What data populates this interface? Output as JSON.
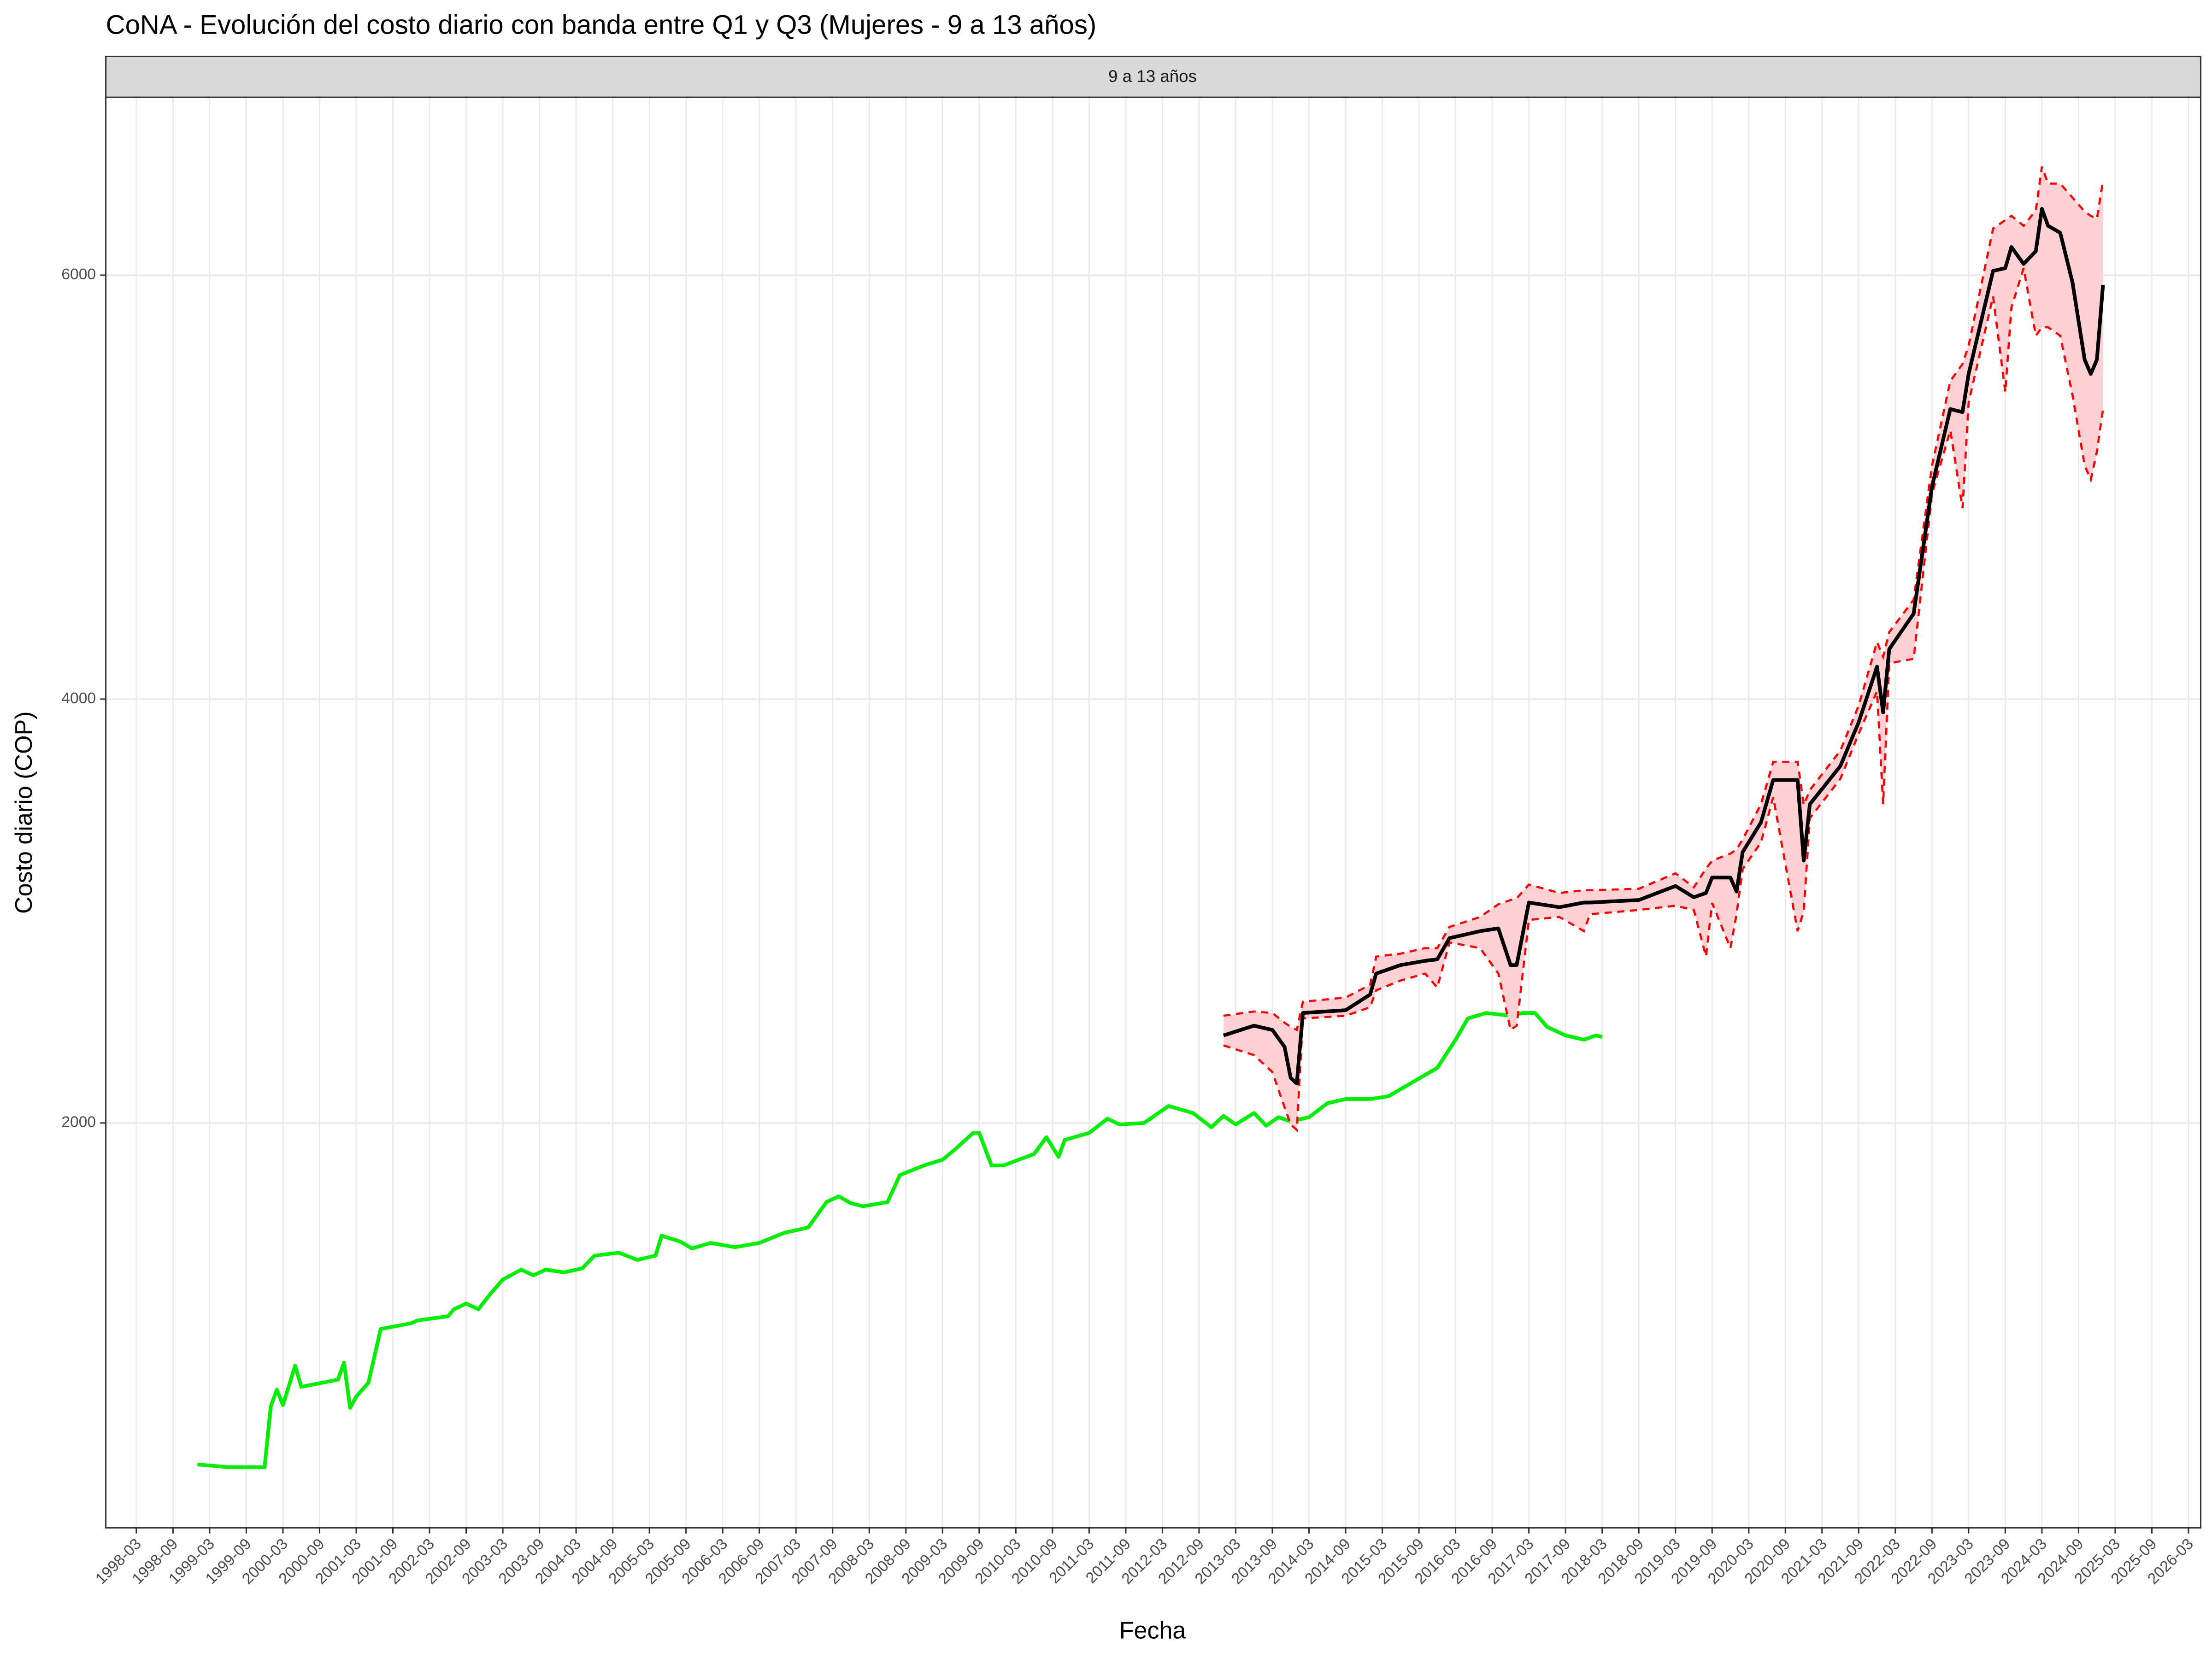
{
  "chart_data": {
    "type": "line",
    "title": "CoNA - Evolución del costo diario con banda entre Q1 y Q3 (Mujeres - 9 a 13 años)",
    "panel_label": "9 a 13 años",
    "xlabel": "Fecha",
    "ylabel": "Costo diario (COP)",
    "xlim": [
      "1997-10",
      "2026-05"
    ],
    "xticks": [
      "1998-03",
      "1998-09",
      "1999-03",
      "1999-09",
      "2000-03",
      "2000-09",
      "2001-03",
      "2001-09",
      "2002-03",
      "2002-09",
      "2003-03",
      "2003-09",
      "2004-03",
      "2004-09",
      "2005-03",
      "2005-09",
      "2006-03",
      "2006-09",
      "2007-03",
      "2007-09",
      "2008-03",
      "2008-09",
      "2009-03",
      "2009-09",
      "2010-03",
      "2010-09",
      "2011-03",
      "2011-09",
      "2012-03",
      "2012-09",
      "2013-03",
      "2013-09",
      "2014-03",
      "2014-09",
      "2015-03",
      "2015-09",
      "2016-03",
      "2016-09",
      "2017-03",
      "2017-09",
      "2018-03",
      "2018-09",
      "2019-03",
      "2019-09",
      "2020-03",
      "2020-09",
      "2021-03",
      "2021-09",
      "2022-03",
      "2022-09",
      "2023-03",
      "2023-09",
      "2024-03",
      "2024-09",
      "2025-03",
      "2025-09",
      "2026-03"
    ],
    "ylim": [
      90,
      6839
    ],
    "yticks": [
      2000,
      4000,
      6000
    ],
    "grid": true,
    "band_fill": "#ffd1d4",
    "band_line_color": "#ff0000",
    "series": [
      {
        "color": "#00ee00",
        "x": [
          "1999-01",
          "1999-06",
          "1999-12",
          "2000-01",
          "2000-02",
          "2000-03",
          "2000-05",
          "2000-06",
          "2000-12",
          "2001-01",
          "2001-02",
          "2001-03",
          "2001-05",
          "2001-07",
          "2001-12",
          "2002-01",
          "2002-06",
          "2002-07",
          "2002-09",
          "2002-11",
          "2003-01",
          "2003-03",
          "2003-06",
          "2003-08",
          "2003-10",
          "2004-01",
          "2004-04",
          "2004-06",
          "2004-10",
          "2005-01",
          "2005-04",
          "2005-05",
          "2005-08",
          "2005-10",
          "2006-01",
          "2006-05",
          "2006-09",
          "2007-01",
          "2007-05",
          "2007-08",
          "2007-10",
          "2007-12",
          "2008-02",
          "2008-06",
          "2008-08",
          "2008-12",
          "2009-03",
          "2009-05",
          "2009-08",
          "2009-09",
          "2009-11",
          "2010-01",
          "2010-06",
          "2010-08",
          "2010-10",
          "2010-11",
          "2011-03",
          "2011-06",
          "2011-08",
          "2011-12",
          "2012-02",
          "2012-04",
          "2012-08",
          "2012-11",
          "2013-01",
          "2013-03",
          "2013-06",
          "2013-08",
          "2013-10",
          "2013-12",
          "2014-03",
          "2014-06",
          "2014-09",
          "2015-01",
          "2015-04",
          "2015-08",
          "2015-12",
          "2016-03",
          "2016-05",
          "2016-08",
          "2016-12",
          "2017-02",
          "2017-04",
          "2017-06",
          "2017-09",
          "2017-12",
          "2018-02",
          "2018-03"
        ],
        "values": [
          389,
          376,
          376,
          662,
          742,
          669,
          855,
          755,
          789,
          869,
          656,
          709,
          775,
          1028,
          1055,
          1068,
          1088,
          1121,
          1148,
          1121,
          1195,
          1261,
          1308,
          1281,
          1308,
          1295,
          1314,
          1374,
          1388,
          1354,
          1374,
          1468,
          1441,
          1408,
          1434,
          1414,
          1434,
          1481,
          1507,
          1627,
          1654,
          1621,
          1607,
          1627,
          1754,
          1800,
          1827,
          1874,
          1953,
          1953,
          1800,
          1800,
          1854,
          1933,
          1840,
          1920,
          1953,
          2020,
          1993,
          2000,
          2040,
          2080,
          2047,
          1980,
          2033,
          1993,
          2047,
          1987,
          2027,
          2007,
          2027,
          2093,
          2113,
          2113,
          2126,
          2193,
          2260,
          2393,
          2493,
          2519,
          2506,
          2519,
          2519,
          2453,
          2413,
          2393,
          2413,
          2406
        ]
      },
      {
        "color": "#000000",
        "x": [
          "2013-01",
          "2013-06",
          "2013-09",
          "2013-11",
          "2013-12",
          "2014-01",
          "2014-02",
          "2014-09",
          "2015-01",
          "2015-02",
          "2015-06",
          "2015-10",
          "2015-12",
          "2016-02",
          "2016-07",
          "2016-10",
          "2016-12",
          "2017-01",
          "2017-03",
          "2017-08",
          "2017-12",
          "2018-01",
          "2018-09",
          "2019-03",
          "2019-06",
          "2019-08",
          "2019-09",
          "2019-12",
          "2020-01",
          "2020-02",
          "2020-05",
          "2020-07",
          "2020-11",
          "2020-12",
          "2021-01",
          "2021-06",
          "2021-09",
          "2021-12",
          "2022-01",
          "2022-02",
          "2022-06",
          "2022-09",
          "2022-12",
          "2023-02",
          "2023-03",
          "2023-07",
          "2023-09",
          "2023-10",
          "2023-12",
          "2024-02",
          "2024-03",
          "2024-04",
          "2024-06",
          "2024-08",
          "2024-10",
          "2024-11",
          "2024-12",
          "2025-01"
        ],
        "values": [
          2413,
          2459,
          2439,
          2359,
          2213,
          2186,
          2519,
          2532,
          2606,
          2705,
          2745,
          2765,
          2772,
          2872,
          2905,
          2918,
          2745,
          2745,
          3040,
          3018,
          3040,
          3040,
          3052,
          3118,
          3065,
          3085,
          3158,
          3158,
          3092,
          3278,
          3418,
          3618,
          3618,
          3238,
          3504,
          3684,
          3891,
          4153,
          3937,
          4236,
          4403,
          5002,
          5368,
          5354,
          5534,
          6020,
          6033,
          6133,
          6053,
          6113,
          6313,
          6233,
          6200,
          5967,
          5601,
          5534,
          5601,
          5953
        ],
        "q1": [
          2366,
          2320,
          2240,
          2073,
          1993,
          1967,
          2493,
          2506,
          2546,
          2626,
          2672,
          2705,
          2639,
          2852,
          2825,
          2705,
          2439,
          2459,
          2958,
          2972,
          2905,
          2985,
          3005,
          3025,
          3005,
          2785,
          3038,
          2825,
          2985,
          3198,
          3324,
          3537,
          2905,
          3000,
          3438,
          3624,
          3837,
          4037,
          3504,
          4169,
          4190,
          4968,
          5268,
          4901,
          5400,
          5900,
          5448,
          5847,
          6033,
          5714,
          5754,
          5754,
          5714,
          5434,
          5101,
          5035,
          5168,
          5368
        ],
        "q3": [
          2506,
          2526,
          2519,
          2473,
          2453,
          2439,
          2572,
          2592,
          2652,
          2785,
          2799,
          2825,
          2825,
          2925,
          2972,
          3032,
          3052,
          3060,
          3125,
          3085,
          3098,
          3098,
          3105,
          3178,
          3112,
          3200,
          3238,
          3271,
          3290,
          3338,
          3504,
          3704,
          3704,
          3500,
          3571,
          3757,
          3970,
          4269,
          4200,
          4316,
          4469,
          5101,
          5501,
          5581,
          5668,
          6220,
          6260,
          6280,
          6233,
          6306,
          6512,
          6432,
          6432,
          6366,
          6300,
          6280,
          6266,
          6446
        ]
      }
    ]
  }
}
